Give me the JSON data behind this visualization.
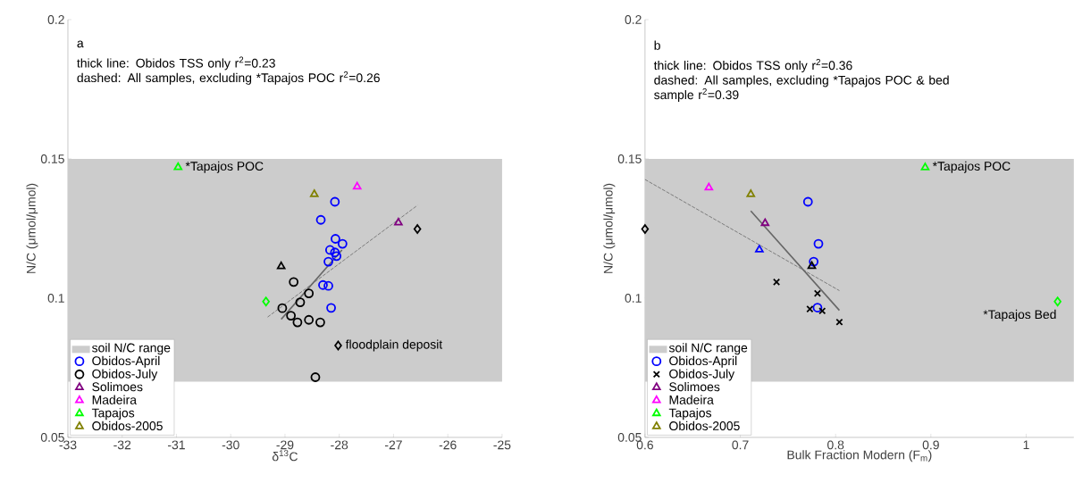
{
  "chart_data": [
    {
      "type": "scatter",
      "xlabel": "δ$^{13}$C",
      "ylabel": "N/C (μmol/μmol)",
      "xlim": [
        -33,
        -25
      ],
      "ylim": [
        0.05,
        0.2
      ],
      "xticks": [
        -33,
        -32,
        -31,
        -30,
        -29,
        -28,
        -27,
        -26,
        -25
      ],
      "yticks": [
        0.05,
        0.1,
        0.15,
        0.2
      ],
      "legend": "bottom left",
      "bands": [
        {
          "axis": "y",
          "from": 0.07,
          "to": 0.15,
          "label": "soil N/C range",
          "color": "#cccccc"
        }
      ],
      "annotations": [
        "a",
        "thick line: Obidos TSS only r$^{2}$=0.23",
        "dashed: All samples, excluding *Tapajos POC r$^{2}$=0.26",
        {
          "text": "*Tapajos POC",
          "x": -30.97,
          "y": 0.147
        },
        {
          "text": "floodplain deposit",
          "x": -28.02,
          "y": 0.083
        }
      ],
      "series": [
        {
          "type": "line",
          "color": "#666666",
          "line_style": "solid",
          "x": [
            -29.07,
            -27.95
          ],
          "values": [
            0.0924,
            0.1173
          ]
        },
        {
          "type": "line",
          "color": "#666666",
          "line_style": "dashed",
          "x": [
            -29.32,
            -26.56
          ],
          "values": [
            0.0932,
            0.1333
          ]
        },
        {
          "name": "Obidos-April",
          "color": "#0000ff",
          "marker": "circle",
          "x": [
            -28.08,
            -28.34,
            -28.07,
            -27.94,
            -28.17,
            -28.08,
            -28.05,
            -28.2,
            -28.3,
            -28.2,
            -28.15
          ],
          "values": [
            0.1346,
            0.1281,
            0.1213,
            0.1195,
            0.1173,
            0.1164,
            0.1151,
            0.1131,
            0.1047,
            0.1044,
            0.0965
          ]
        },
        {
          "name": "Obidos-July",
          "color": "#000000",
          "marker": "circle",
          "x": [
            -28.84,
            -28.56,
            -28.72,
            -29.05,
            -28.89,
            -28.77,
            -28.56,
            -28.35,
            -28.44
          ],
          "values": [
            0.1058,
            0.1017,
            0.0985,
            0.0964,
            0.0937,
            0.0913,
            0.0922,
            0.0913,
            0.0716
          ]
        },
        {
          "name": "Solimoes",
          "color": "#800080",
          "marker": "triangle",
          "x": [
            -26.91
          ],
          "values": [
            0.1271
          ]
        },
        {
          "name": "Madeira",
          "color": "#ff00ff",
          "marker": "triangle",
          "x": [
            -27.67
          ],
          "values": [
            0.14
          ]
        },
        {
          "name": "Tapajos",
          "color": "#00ff00",
          "marker": "triangle",
          "x": [
            -30.97
          ],
          "values": [
            0.147
          ]
        },
        {
          "name": "Obidos-2005",
          "color": "#808000",
          "marker": "triangle",
          "x": [
            -28.46
          ],
          "values": [
            0.1373
          ]
        },
        {
          "color": "#000000",
          "marker": "triangle",
          "x": [
            -29.07
          ],
          "values": [
            0.1114
          ]
        },
        {
          "color": "#00ff00",
          "marker": "diamond",
          "x": [
            -29.35
          ],
          "values": [
            0.0988
          ]
        },
        {
          "color": "#000000",
          "marker": "diamond",
          "x": [
            -26.56,
            -28.02
          ],
          "values": [
            0.1248,
            0.083
          ]
        }
      ]
    },
    {
      "type": "scatter",
      "xlabel": "Bulk Fraction Modern (F$_{m}$)",
      "ylabel": "N/C (μmol/μmol)",
      "xlim": [
        0.6,
        1.05
      ],
      "ylim": [
        0.05,
        0.2
      ],
      "xticks": [
        0.6,
        0.7,
        0.8,
        0.9,
        1
      ],
      "yticks": [
        0.05,
        0.1,
        0.15,
        0.2
      ],
      "legend": "bottom left",
      "bands": [
        {
          "axis": "y",
          "from": 0.07,
          "to": 0.15,
          "label": "soil N/C range",
          "color": "#cccccc"
        }
      ],
      "annotations": [
        "b",
        "thick line: Obidos TSS only r$^{2}$=0.36",
        "dashed: All samples, excluding *Tapajos POC & bed sample r$^{2}$=0.39",
        {
          "text": "*Tapajos POC",
          "x": 0.894,
          "y": 0.147
        },
        {
          "text": "*Tapajos Bed",
          "x": 1.033,
          "y": 0.0988
        }
      ],
      "series": [
        {
          "type": "line",
          "color": "#666666",
          "line_style": "solid",
          "x": [
            0.711,
            0.804
          ],
          "values": [
            0.1313,
            0.0956
          ]
        },
        {
          "type": "line",
          "color": "#666666",
          "line_style": "dashed",
          "x": [
            0.6,
            0.804
          ],
          "values": [
            0.1426,
            0.1027
          ]
        },
        {
          "name": "Obidos-April",
          "color": "#0000ff",
          "marker": "circle",
          "x": [
            0.771,
            0.782,
            0.777,
            0.781
          ],
          "values": [
            0.1346,
            0.1195,
            0.1131,
            0.0966
          ]
        },
        {
          "name": "Obidos-July",
          "color": "#000000",
          "marker": "cross",
          "x": [
            0.738,
            0.781,
            0.773,
            0.786,
            0.804
          ],
          "values": [
            0.1058,
            0.1017,
            0.0961,
            0.0954,
            0.0914
          ]
        },
        {
          "name": "Solimoes",
          "color": "#800080",
          "marker": "triangle",
          "x": [
            0.726
          ],
          "values": [
            0.1269
          ]
        },
        {
          "name": "Madeira",
          "color": "#ff00ff",
          "marker": "triangle",
          "x": [
            0.667
          ],
          "values": [
            0.1397
          ]
        },
        {
          "name": "Tapajos",
          "color": "#00ff00",
          "marker": "triangle",
          "x": [
            0.894
          ],
          "values": [
            0.1469
          ]
        },
        {
          "name": "Obidos-2005",
          "color": "#808000",
          "marker": "triangle",
          "x": [
            0.711
          ],
          "values": [
            0.1373
          ]
        },
        {
          "color": "#0000ff",
          "marker": "triangle",
          "x": [
            0.72
          ],
          "values": [
            0.1174
          ]
        },
        {
          "color": "#000000",
          "marker": "triangle",
          "x": [
            0.775
          ],
          "values": [
            0.1115
          ]
        },
        {
          "color": "#00ff00",
          "marker": "diamond",
          "x": [
            1.033
          ],
          "values": [
            0.0988
          ]
        },
        {
          "color": "#000000",
          "marker": "diamond",
          "x": [
            0.6
          ],
          "values": [
            0.1248
          ]
        }
      ]
    }
  ]
}
